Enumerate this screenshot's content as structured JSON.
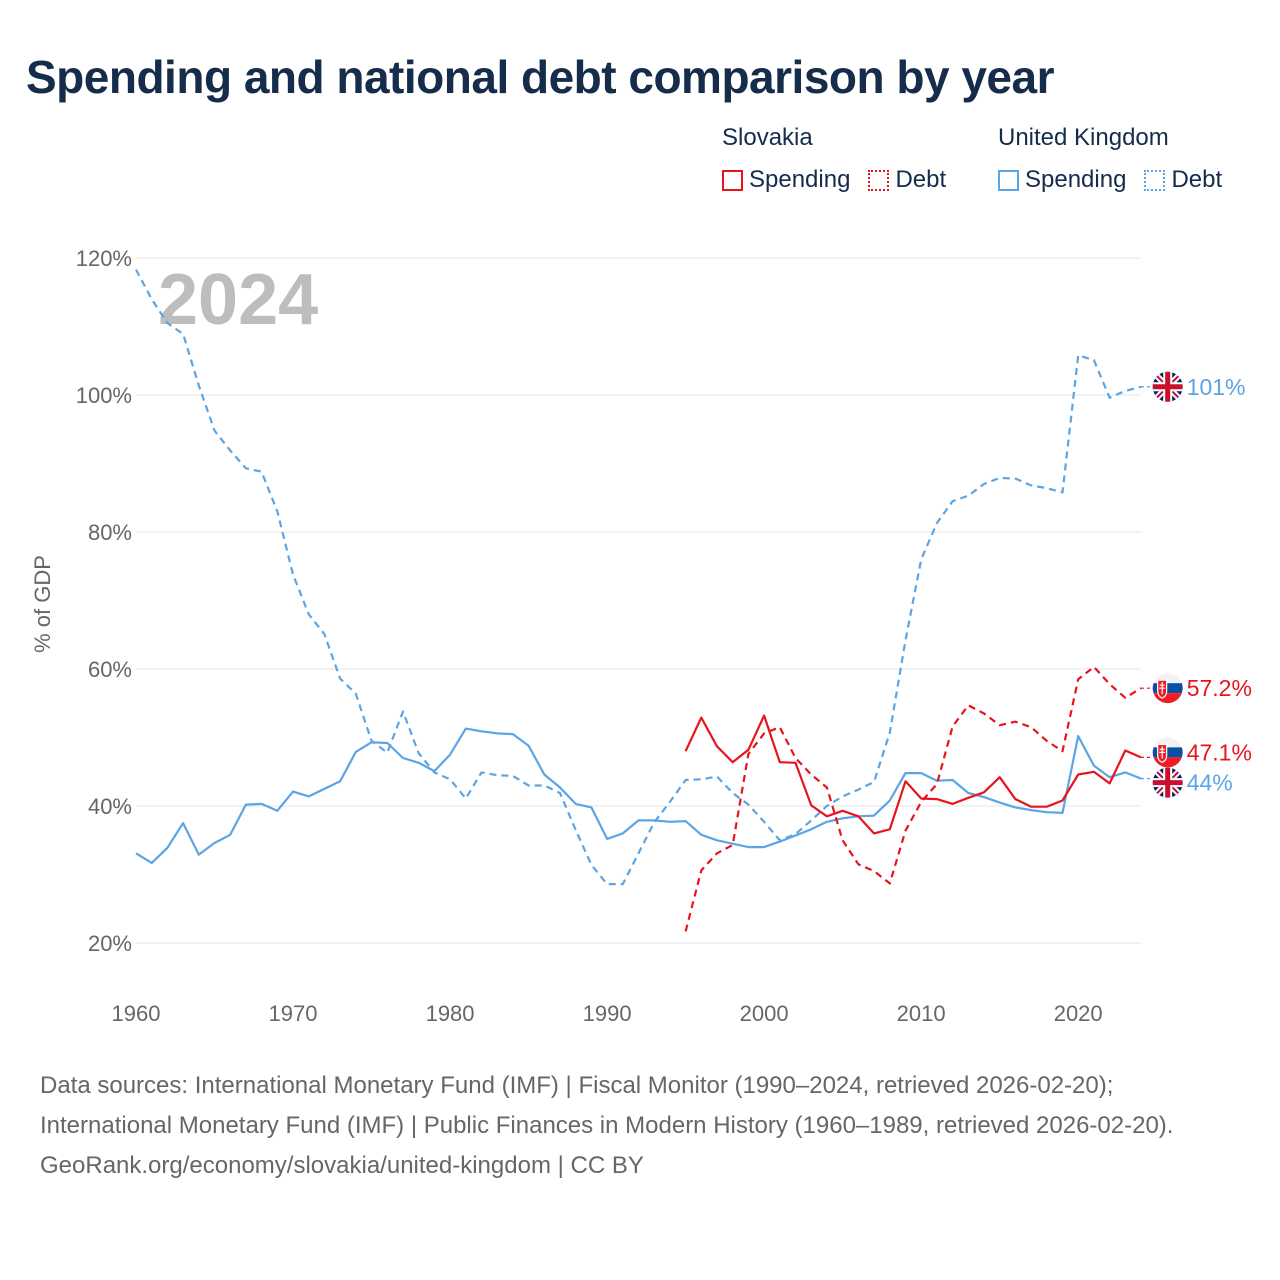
{
  "title": "Spending and national debt comparison by year",
  "legend": {
    "groups": [
      {
        "country": "Slovakia",
        "color": "#e8141c",
        "spending_label": "Spending",
        "debt_label": "Debt"
      },
      {
        "country": "United Kingdom",
        "color": "#5ba4e5",
        "spending_label": "Spending",
        "debt_label": "Debt"
      }
    ]
  },
  "chart_data": {
    "type": "line",
    "title": "Spending and national debt comparison by year",
    "year_label": "2024",
    "ylabel": "% of GDP",
    "xlabel": "",
    "xlim": [
      1960,
      2024
    ],
    "ylim": [
      20,
      120
    ],
    "x_ticks": [
      1960,
      1970,
      1980,
      1990,
      2000,
      2010,
      2020
    ],
    "y_ticks": [
      20,
      40,
      60,
      80,
      100,
      120
    ],
    "y_tick_labels": [
      "20%",
      "40%",
      "60%",
      "80%",
      "100%",
      "120%"
    ],
    "grid": true,
    "series": [
      {
        "name": "United Kingdom Debt",
        "country": "United Kingdom",
        "kind": "debt",
        "color": "#5ba4e5",
        "dash": true,
        "start_year": 1960,
        "values": [
          118.3,
          114.0,
          110.5,
          108.9,
          101.4,
          94.8,
          91.9,
          89.3,
          88.8,
          83.0,
          73.8,
          68.0,
          65.1,
          58.6,
          56.4,
          49.5,
          47.8,
          53.8,
          47.7,
          44.9,
          43.9,
          41.1,
          44.9,
          44.5,
          44.4,
          43.0,
          43.0,
          41.9,
          36.5,
          31.4,
          28.6,
          28.6,
          33.1,
          37.6,
          40.6,
          43.8,
          43.9,
          44.3,
          41.9,
          40.2,
          37.7,
          35.0,
          35.9,
          37.9,
          40.0,
          41.4,
          42.4,
          43.5,
          50.7,
          64.2,
          76.0,
          81.3,
          84.5,
          85.3,
          87.0,
          87.9,
          87.8,
          86.8,
          86.4,
          85.8,
          105.8,
          105.1,
          99.6,
          100.6,
          101.2
        ],
        "end_label": "101%"
      },
      {
        "name": "United Kingdom Spending",
        "country": "United Kingdom",
        "kind": "spending",
        "color": "#5ba4e5",
        "dash": false,
        "start_year": 1960,
        "values": [
          33.1,
          31.7,
          33.9,
          37.5,
          32.9,
          34.6,
          35.8,
          40.2,
          40.3,
          39.3,
          42.1,
          41.4,
          42.5,
          43.6,
          47.9,
          49.3,
          49.2,
          47.0,
          46.3,
          45.1,
          47.5,
          51.3,
          50.9,
          50.6,
          50.5,
          48.8,
          44.6,
          42.7,
          40.3,
          39.8,
          35.2,
          36.0,
          37.9,
          37.9,
          37.7,
          37.8,
          35.8,
          35.0,
          34.5,
          34.0,
          34.0,
          34.8,
          35.7,
          36.6,
          37.7,
          38.2,
          38.5,
          38.6,
          40.8,
          44.8,
          44.8,
          43.7,
          43.8,
          41.9,
          41.3,
          40.5,
          39.8,
          39.4,
          39.1,
          39.0,
          50.2,
          45.9,
          44.2,
          44.9,
          44.0
        ],
        "end_label": "44%"
      },
      {
        "name": "Slovakia Debt",
        "country": "Slovakia",
        "kind": "debt",
        "color": "#e8141c",
        "dash": true,
        "start_year": 1995,
        "values": [
          21.7,
          30.6,
          33.1,
          34.3,
          47.6,
          50.6,
          51.5,
          47.0,
          44.6,
          42.7,
          35.0,
          31.5,
          30.5,
          28.7,
          36.4,
          40.6,
          43.2,
          51.6,
          54.7,
          53.5,
          51.8,
          52.3,
          51.5,
          49.5,
          48.0,
          58.5,
          60.3,
          57.8,
          55.8,
          57.2
        ],
        "end_label": "57.2%"
      },
      {
        "name": "Slovakia Spending",
        "country": "Slovakia",
        "kind": "spending",
        "color": "#e8141c",
        "dash": false,
        "start_year": 1995,
        "values": [
          48.0,
          52.9,
          48.7,
          46.4,
          48.2,
          53.2,
          46.4,
          46.3,
          40.1,
          38.5,
          39.3,
          38.5,
          36.0,
          36.6,
          43.6,
          41.1,
          41.0,
          40.3,
          41.2,
          42.0,
          44.2,
          41.0,
          39.9,
          39.9,
          40.8,
          44.6,
          45.0,
          43.3,
          48.1,
          47.1
        ],
        "end_label": "47.1%"
      }
    ]
  },
  "markers": [
    {
      "series": "United Kingdom Debt",
      "icon": "uk-flag-icon"
    },
    {
      "series": "Slovakia Debt",
      "icon": "slovakia-flag-icon"
    },
    {
      "series": "Slovakia Spending",
      "icon": "slovakia-flag-icon"
    },
    {
      "series": "United Kingdom Spending",
      "icon": "uk-flag-icon"
    }
  ],
  "footer": {
    "sources": "Data sources: International Monetary Fund (IMF) | Fiscal Monitor (1990–2024, retrieved 2026-02-20); International Monetary Fund (IMF) | Public Finances in Modern History (1960–1989, retrieved 2026-02-20).",
    "credit": "GeoRank.org/economy/slovakia/united-kingdom | CC BY"
  }
}
